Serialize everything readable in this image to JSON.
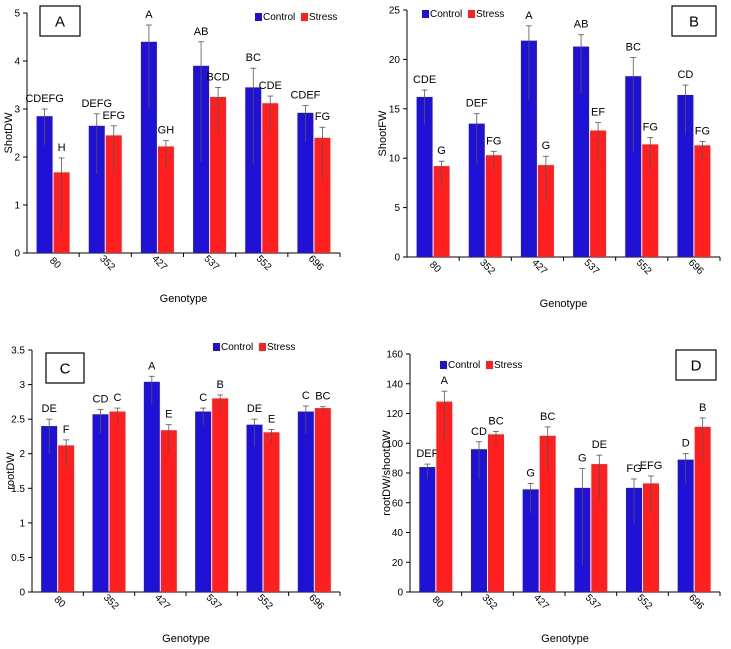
{
  "colors": {
    "control": "#1f12d6",
    "stress": "#ff1f1f",
    "axis": "#000000"
  },
  "legend_labels": {
    "control": "Control",
    "stress": "Stress"
  },
  "chart_data": [
    {
      "panel": "A",
      "type": "bar",
      "categories": [
        "80",
        "352",
        "427",
        "537",
        "552",
        "696"
      ],
      "xlabel": "Genotype",
      "ylabel": "ShotDW",
      "ylim": [
        0,
        5
      ],
      "yticks": [
        0,
        1,
        2,
        3,
        4,
        5
      ],
      "legend_position": "top-right",
      "series": [
        {
          "name": "Control",
          "values": [
            2.85,
            2.65,
            4.4,
            3.9,
            3.45,
            2.92
          ],
          "errors": [
            0.15,
            0.25,
            0.35,
            0.5,
            0.4,
            0.15
          ],
          "labels": [
            "CDEFG",
            "DEFG",
            "A",
            "AB",
            "BC",
            "CDEF"
          ]
        },
        {
          "name": "Stress",
          "values": [
            1.68,
            2.45,
            2.22,
            3.25,
            3.12,
            2.4
          ],
          "errors": [
            0.3,
            0.2,
            0.12,
            0.2,
            0.15,
            0.22
          ],
          "labels": [
            "H",
            "EFG",
            "GH",
            "BCD",
            "CDE",
            "FG"
          ]
        }
      ]
    },
    {
      "panel": "B",
      "type": "bar",
      "categories": [
        "80",
        "352",
        "427",
        "537",
        "552",
        "696"
      ],
      "xlabel": "Genotype",
      "ylabel": "ShootFW",
      "ylim": [
        0,
        25
      ],
      "yticks": [
        0,
        5,
        10,
        15,
        20,
        25
      ],
      "legend_position": "top-left",
      "series": [
        {
          "name": "Control",
          "values": [
            16.2,
            13.5,
            21.9,
            21.3,
            18.3,
            16.4
          ],
          "errors": [
            0.7,
            1.0,
            1.5,
            1.2,
            1.9,
            1.0
          ],
          "labels": [
            "CDE",
            "DEF",
            "A",
            "AB",
            "BC",
            "CD"
          ]
        },
        {
          "name": "Stress",
          "values": [
            9.2,
            10.3,
            9.3,
            12.8,
            11.4,
            11.3
          ],
          "errors": [
            0.5,
            0.4,
            0.9,
            0.8,
            0.7,
            0.4
          ],
          "labels": [
            "G",
            "FG",
            "G",
            "EF",
            "FG",
            "FG"
          ]
        }
      ]
    },
    {
      "panel": "C",
      "type": "bar",
      "categories": [
        "80",
        "352",
        "427",
        "537",
        "552",
        "696"
      ],
      "xlabel": "Genotype",
      "ylabel": "rootDW",
      "ylim": [
        0,
        3.5
      ],
      "yticks": [
        0,
        0.5,
        1,
        1.5,
        2,
        2.5,
        3,
        3.5
      ],
      "legend_position": "top-right",
      "series": [
        {
          "name": "Control",
          "values": [
            2.4,
            2.57,
            3.04,
            2.61,
            2.42,
            2.61
          ],
          "errors": [
            0.1,
            0.07,
            0.08,
            0.05,
            0.08,
            0.08
          ],
          "labels": [
            "DE",
            "CD",
            "A",
            "C",
            "DE",
            "C"
          ]
        },
        {
          "name": "Stress",
          "values": [
            2.12,
            2.61,
            2.34,
            2.8,
            2.31,
            2.66
          ],
          "errors": [
            0.08,
            0.05,
            0.08,
            0.05,
            0.04,
            0.02
          ],
          "labels": [
            "F",
            "C",
            "E",
            "B",
            "E",
            "BC"
          ]
        }
      ]
    },
    {
      "panel": "D",
      "type": "bar",
      "categories": [
        "80",
        "352",
        "427",
        "537",
        "552",
        "696"
      ],
      "xlabel": "Genotype",
      "ylabel": "rootDW/shootDW",
      "ylim": [
        0,
        160
      ],
      "yticks": [
        0,
        20,
        40,
        60,
        80,
        100,
        120,
        140,
        160
      ],
      "legend_position": "top-left",
      "series": [
        {
          "name": "Control",
          "values": [
            84,
            96,
            69,
            70,
            70,
            89
          ],
          "errors": [
            2,
            5,
            4,
            13,
            6,
            4
          ],
          "labels": [
            "DEF",
            "CD",
            "G",
            "G",
            "FG",
            "D"
          ]
        },
        {
          "name": "Stress",
          "values": [
            128,
            106,
            105,
            86,
            73,
            111
          ],
          "errors": [
            7,
            2,
            6,
            6,
            5,
            6
          ],
          "labels": [
            "A",
            "BC",
            "BC",
            "DE",
            "EFG",
            "B"
          ]
        }
      ]
    }
  ]
}
